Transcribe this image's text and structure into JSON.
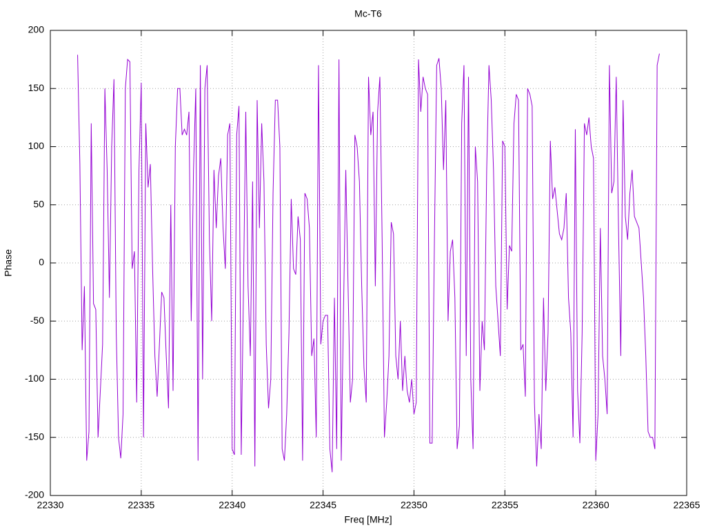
{
  "chart_data": {
    "type": "line",
    "title": "Mc-T6",
    "xlabel": "Freq [MHz]",
    "ylabel": "Phase",
    "xlim": [
      22330,
      22365
    ],
    "xticks": [
      22330,
      22335,
      22340,
      22345,
      22350,
      22355,
      22360,
      22365
    ],
    "ylim": [
      -200,
      200
    ],
    "yticks": [
      -200,
      -150,
      -100,
      -50,
      0,
      50,
      100,
      150,
      200
    ],
    "grid": true,
    "x": [
      22331.5,
      22331.625,
      22331.75,
      22331.875,
      22332,
      22332.125,
      22332.25,
      22332.375,
      22332.5,
      22332.625,
      22332.75,
      22332.875,
      22333,
      22333.125,
      22333.25,
      22333.375,
      22333.5,
      22333.625,
      22333.75,
      22333.875,
      22334,
      22334.125,
      22334.25,
      22334.375,
      22334.5,
      22334.625,
      22334.75,
      22334.875,
      22335,
      22335.125,
      22335.25,
      22335.375,
      22335.5,
      22335.625,
      22335.75,
      22335.875,
      22336,
      22336.125,
      22336.25,
      22336.375,
      22336.5,
      22336.625,
      22336.75,
      22336.875,
      22337,
      22337.125,
      22337.25,
      22337.375,
      22337.5,
      22337.625,
      22337.75,
      22337.875,
      22338,
      22338.125,
      22338.25,
      22338.375,
      22338.5,
      22338.625,
      22338.75,
      22338.875,
      22339,
      22339.125,
      22339.25,
      22339.375,
      22339.5,
      22339.625,
      22339.75,
      22339.875,
      22340,
      22340.125,
      22340.25,
      22340.375,
      22340.5,
      22340.625,
      22340.75,
      22340.875,
      22341,
      22341.125,
      22341.25,
      22341.375,
      22341.5,
      22341.625,
      22341.75,
      22341.875,
      22342,
      22342.125,
      22342.25,
      22342.375,
      22342.5,
      22342.625,
      22342.75,
      22342.875,
      22343,
      22343.125,
      22343.25,
      22343.375,
      22343.5,
      22343.625,
      22343.75,
      22343.875,
      22344,
      22344.125,
      22344.25,
      22344.375,
      22344.5,
      22344.625,
      22344.75,
      22344.875,
      22345,
      22345.125,
      22345.25,
      22345.375,
      22345.5,
      22345.625,
      22345.75,
      22345.875,
      22346,
      22346.125,
      22346.25,
      22346.375,
      22346.5,
      22346.625,
      22346.75,
      22346.875,
      22347,
      22347.125,
      22347.25,
      22347.375,
      22347.5,
      22347.625,
      22347.75,
      22347.875,
      22348,
      22348.125,
      22348.25,
      22348.375,
      22348.5,
      22348.625,
      22348.75,
      22348.875,
      22349,
      22349.125,
      22349.25,
      22349.375,
      22349.5,
      22349.625,
      22349.75,
      22349.875,
      22350,
      22350.125,
      22350.25,
      22350.375,
      22350.5,
      22350.625,
      22350.75,
      22350.875,
      22351,
      22351.125,
      22351.25,
      22351.375,
      22351.5,
      22351.625,
      22351.75,
      22351.875,
      22352,
      22352.125,
      22352.25,
      22352.375,
      22352.5,
      22352.625,
      22352.75,
      22352.875,
      22353,
      22353.125,
      22353.25,
      22353.375,
      22353.5,
      22353.625,
      22353.75,
      22353.875,
      22354,
      22354.125,
      22354.25,
      22354.375,
      22354.5,
      22354.625,
      22354.75,
      22354.875,
      22355,
      22355.125,
      22355.25,
      22355.375,
      22355.5,
      22355.625,
      22355.75,
      22355.875,
      22356,
      22356.125,
      22356.25,
      22356.375,
      22356.5,
      22356.625,
      22356.75,
      22356.875,
      22357,
      22357.125,
      22357.25,
      22357.375,
      22357.5,
      22357.625,
      22357.75,
      22357.875,
      22358,
      22358.125,
      22358.25,
      22358.375,
      22358.5,
      22358.625,
      22358.75,
      22358.875,
      22359,
      22359.125,
      22359.25,
      22359.375,
      22359.5,
      22359.625,
      22359.75,
      22359.875,
      22360,
      22360.125,
      22360.25,
      22360.375,
      22360.5,
      22360.625,
      22360.75,
      22360.875,
      22361,
      22361.125,
      22361.25,
      22361.375,
      22361.5,
      22361.625,
      22361.75,
      22361.875,
      22362,
      22362.125,
      22362.25,
      22362.375,
      22362.5,
      22362.625,
      22362.75,
      22362.875,
      22363,
      22363.125,
      22363.25,
      22363.375,
      22363.5
    ],
    "series": [
      {
        "color": "#9400d3",
        "values": [
          179,
          85,
          -75,
          -20,
          -170,
          -145,
          120,
          -35,
          -40,
          -150,
          -110,
          -70,
          150,
          80,
          -30,
          100,
          158,
          -60,
          -150,
          -168,
          -130,
          150,
          175,
          173,
          -5,
          10,
          -120,
          80,
          155,
          -150,
          120,
          65,
          85,
          -5,
          -80,
          -115,
          -70,
          -25,
          -30,
          -80,
          -125,
          50,
          -110,
          100,
          150,
          150,
          110,
          115,
          110,
          130,
          -50,
          80,
          150,
          -170,
          170,
          -100,
          150,
          170,
          20,
          -50,
          80,
          30,
          75,
          90,
          30,
          -5,
          110,
          120,
          -160,
          -165,
          110,
          135,
          -165,
          -20,
          130,
          -20,
          -80,
          70,
          -175,
          140,
          30,
          120,
          70,
          -70,
          -125,
          -100,
          60,
          140,
          140,
          100,
          -160,
          -170,
          -130,
          -60,
          55,
          -5,
          -10,
          40,
          20,
          -170,
          60,
          55,
          30,
          -80,
          -65,
          -150,
          170,
          -70,
          -50,
          -45,
          -45,
          -160,
          -180,
          -30,
          -160,
          175,
          -170,
          -40,
          80,
          -20,
          -120,
          -100,
          110,
          100,
          70,
          -20,
          -90,
          -120,
          160,
          110,
          130,
          -20,
          130,
          160,
          20,
          -150,
          -120,
          -80,
          35,
          25,
          -80,
          -100,
          -50,
          -110,
          -80,
          -110,
          -120,
          -100,
          -130,
          -120,
          175,
          130,
          160,
          150,
          145,
          -155,
          -155,
          20,
          170,
          176,
          150,
          80,
          140,
          -50,
          10,
          20,
          -30,
          -160,
          -140,
          120,
          170,
          -80,
          160,
          -100,
          -160,
          100,
          70,
          -110,
          -50,
          -75,
          80,
          170,
          140,
          80,
          -20,
          -50,
          -80,
          105,
          100,
          -40,
          15,
          10,
          120,
          145,
          140,
          -75,
          -70,
          -115,
          150,
          145,
          135,
          -120,
          -175,
          -130,
          -160,
          -30,
          -110,
          -60,
          105,
          55,
          65,
          45,
          25,
          20,
          30,
          60,
          -30,
          -60,
          -150,
          115,
          -110,
          -155,
          -60,
          120,
          110,
          125,
          100,
          90,
          -170,
          -130,
          30,
          -80,
          -100,
          -130,
          170,
          60,
          70,
          160,
          30,
          -80,
          140,
          40,
          20,
          60,
          80,
          40,
          35,
          30,
          0,
          -30,
          -80,
          -145,
          -150,
          -150,
          -160,
          170,
          180
        ]
      }
    ]
  }
}
